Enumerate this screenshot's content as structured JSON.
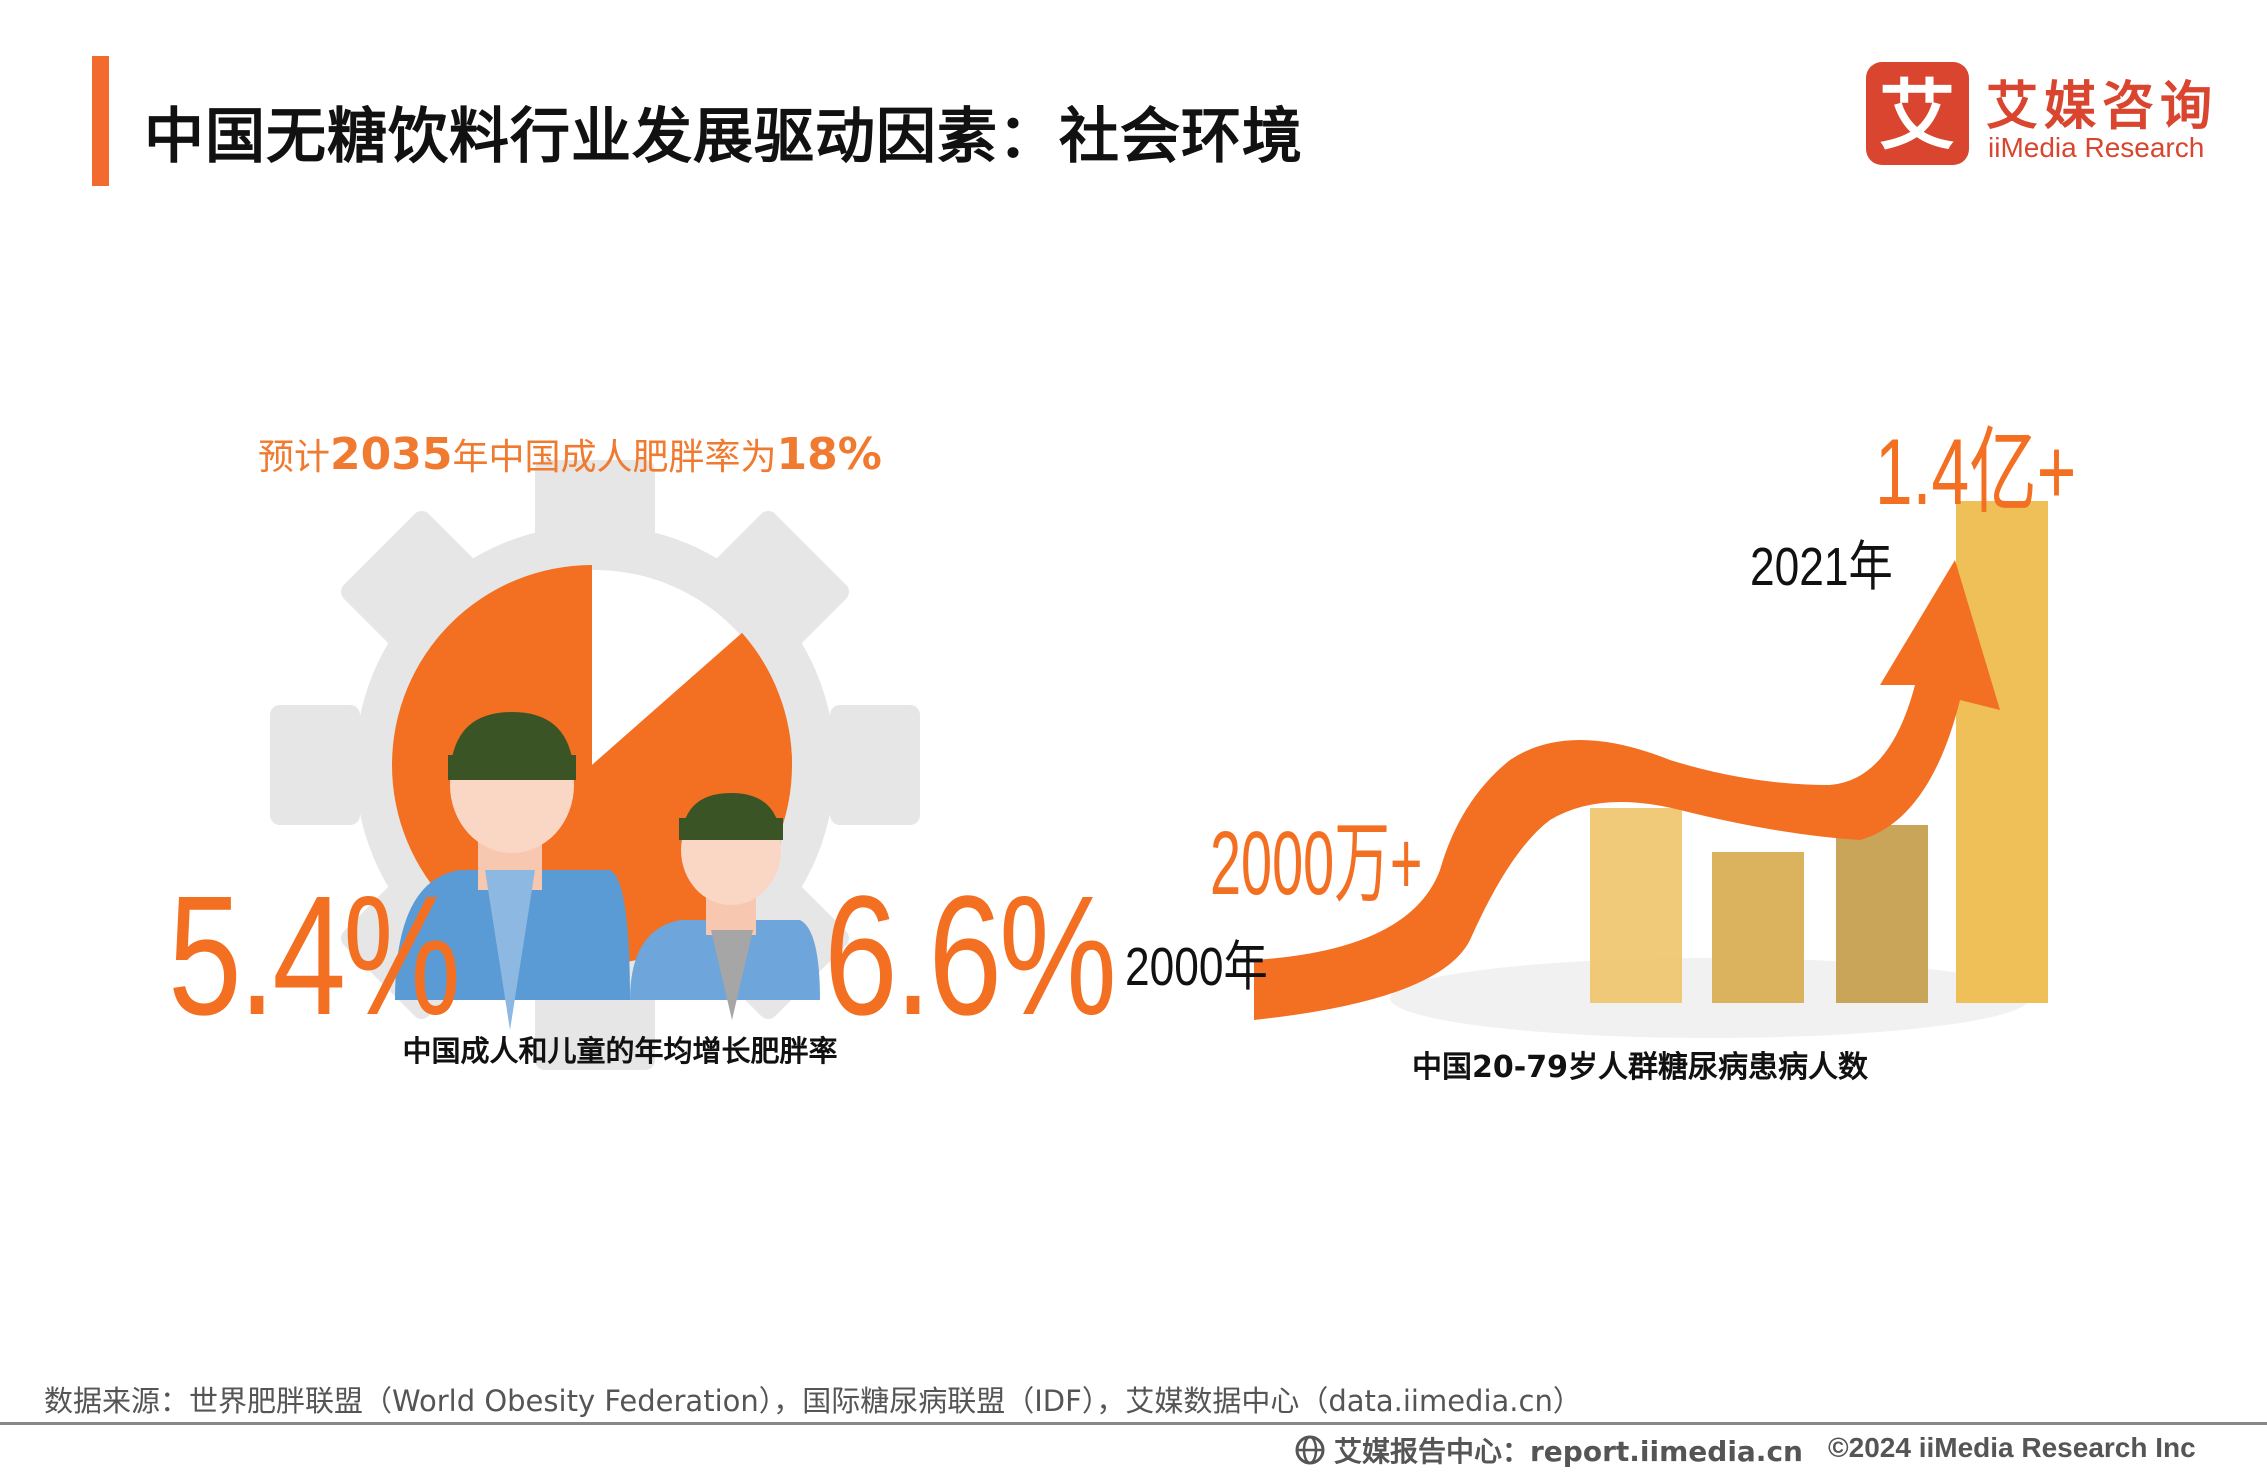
{
  "header": {
    "title": "中国无糖饮料行业发展驱动因素：社会环境"
  },
  "logo": {
    "name_cn": "艾媒咨询",
    "name_en": "iiMedia Research",
    "mark": "艾"
  },
  "left_panel": {
    "forecast_prefix": "预计",
    "forecast_year": "2035",
    "forecast_mid": "年中国成人肥胖率为",
    "forecast_value": "18%",
    "adult_rate": "5.4%",
    "child_rate": "6.6%",
    "caption": "中国成人和儿童的年均增长肥胖率"
  },
  "right_panel": {
    "top_value": "1.4亿+",
    "top_year": "2021年",
    "bottom_value": "2000万+",
    "bottom_year": "2000年",
    "caption": "中国20-79岁人群糖尿病患病人数"
  },
  "colors": {
    "accent": "#f26a2e",
    "orange": "#f36f21",
    "logo_red": "#d9452e",
    "bar_gold": "#eec36a",
    "hair_green": "#3b5426",
    "shirt_blue": "#5b9bd5"
  },
  "footer": {
    "source": "数据来源：世界肥胖联盟（World Obesity Federation），国际糖尿病联盟（IDF），艾媒数据中心（data.iimedia.cn）",
    "report": "艾媒报告中心：report.iimedia.cn",
    "copyright": "©2024  iiMedia Research  Inc"
  }
}
